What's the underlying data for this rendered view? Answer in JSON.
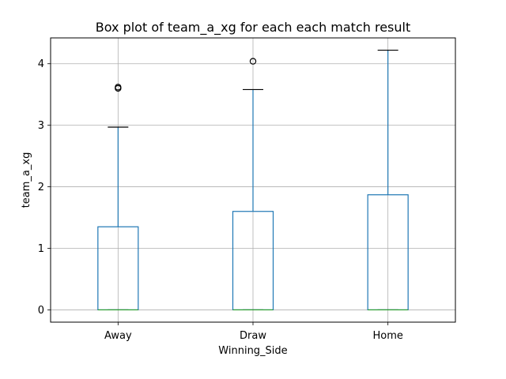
{
  "chart_data": {
    "type": "box",
    "title": "Box plot of team_a_xg for each each match result",
    "xlabel": "Winning_Side",
    "ylabel": "team_a_xg",
    "categories": [
      "Away",
      "Draw",
      "Home"
    ],
    "ylim": [
      -0.2,
      4.42
    ],
    "yticks": [
      "0",
      "1",
      "2",
      "3",
      "4"
    ],
    "grid": true,
    "boxes": [
      {
        "name": "Away",
        "whisker_low": 0.0,
        "q1": 0.0,
        "median": 0.0,
        "q3": 1.35,
        "whisker_high": 2.97,
        "outliers": [
          3.6,
          3.62
        ]
      },
      {
        "name": "Draw",
        "whisker_low": 0.0,
        "q1": 0.0,
        "median": 0.0,
        "q3": 1.6,
        "whisker_high": 3.58,
        "outliers": [
          4.04
        ]
      },
      {
        "name": "Home",
        "whisker_low": 0.0,
        "q1": 0.0,
        "median": 0.0,
        "q3": 1.87,
        "whisker_high": 4.22,
        "outliers": []
      }
    ],
    "colors": {
      "box": "#1f77b4",
      "median": "#2ca02c",
      "whisker": "#1f77b4",
      "cap": "#000000",
      "grid": "#b0b0b0",
      "outlier": "#000000"
    }
  }
}
